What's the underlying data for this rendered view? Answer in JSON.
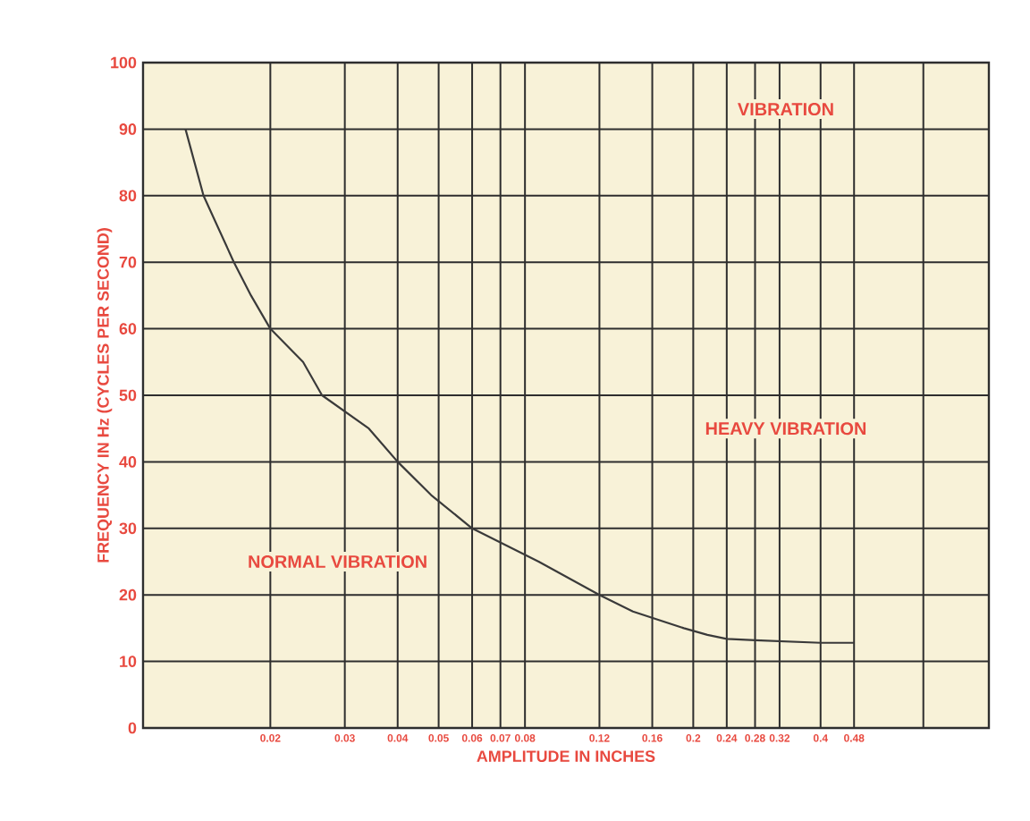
{
  "chart_data": {
    "type": "line",
    "xlabel": "AMPLITUDE IN INCHES",
    "ylabel": "FREQUENCY IN Hz (CYCLES PER SECOND)",
    "x": [
      0.0126,
      0.0139,
      0.0164,
      0.018,
      0.02,
      0.0239,
      0.0265,
      0.0342,
      0.04,
      0.048,
      0.06,
      0.0862,
      0.12,
      0.144,
      0.19,
      0.216,
      0.24,
      0.28,
      0.4,
      0.48
    ],
    "values": [
      90,
      80,
      70,
      65,
      60,
      55,
      50,
      45,
      40,
      35,
      30,
      25,
      20,
      17.5,
      15,
      14,
      13.4,
      13.2,
      12.8,
      12.8
    ],
    "color": "#3a3a3a",
    "xlim": [
      0.01,
      1.0
    ],
    "ylim": [
      0,
      100
    ],
    "log": "x",
    "grid": true,
    "xticks": [
      0.02,
      0.03,
      0.04,
      0.05,
      0.06,
      0.07,
      0.08,
      0.12,
      0.16,
      0.2,
      0.24,
      0.28,
      0.32,
      0.4,
      0.48,
      {
        "value": 0.7,
        "label": null
      }
    ],
    "yticks": [
      0,
      10,
      20,
      30,
      40,
      50,
      60,
      70,
      80,
      90,
      100
    ],
    "annotations": [
      "VIBRATION",
      "HEAVY VIBRATION",
      "NORMAL VIBRATION"
    ]
  }
}
